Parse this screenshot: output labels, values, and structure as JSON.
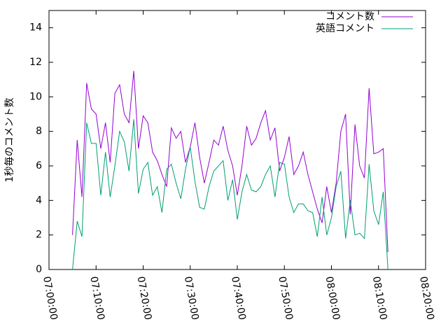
{
  "chart_data": {
    "type": "line",
    "ylabel": "1秒毎のコメント数",
    "x": [
      "07:05:00",
      "07:06:00",
      "07:07:00",
      "07:08:00",
      "07:09:00",
      "07:10:00",
      "07:11:00",
      "07:12:00",
      "07:13:00",
      "07:14:00",
      "07:15:00",
      "07:16:00",
      "07:17:00",
      "07:18:00",
      "07:19:00",
      "07:20:00",
      "07:21:00",
      "07:22:00",
      "07:23:00",
      "07:24:00",
      "07:25:00",
      "07:26:00",
      "07:27:00",
      "07:28:00",
      "07:29:00",
      "07:30:00",
      "07:31:00",
      "07:32:00",
      "07:33:00",
      "07:34:00",
      "07:35:00",
      "07:36:00",
      "07:37:00",
      "07:38:00",
      "07:39:00",
      "07:40:00",
      "07:41:00",
      "07:42:00",
      "07:43:00",
      "07:44:00",
      "07:45:00",
      "07:46:00",
      "07:47:00",
      "07:48:00",
      "07:49:00",
      "07:50:00",
      "07:51:00",
      "07:52:00",
      "07:53:00",
      "07:54:00",
      "07:55:00",
      "07:56:00",
      "07:57:00",
      "07:58:00",
      "07:59:00",
      "08:00:00",
      "08:01:00",
      "08:02:00",
      "08:03:00",
      "08:04:00",
      "08:05:00",
      "08:06:00",
      "08:07:00",
      "08:08:00",
      "08:09:00",
      "08:10:00",
      "08:11:00",
      "08:12:00"
    ],
    "series": [
      {
        "name": "コメント数",
        "color": "#9400d3",
        "values": [
          2.0,
          7.5,
          4.2,
          10.8,
          9.3,
          9.0,
          7.0,
          8.5,
          6.2,
          10.2,
          10.7,
          9.0,
          8.5,
          11.5,
          7.0,
          8.9,
          8.5,
          6.8,
          6.3,
          5.5,
          4.8,
          8.2,
          7.6,
          8.0,
          6.2,
          7.1,
          8.5,
          6.5,
          5.0,
          6.2,
          7.5,
          7.2,
          8.3,
          6.9,
          6.0,
          4.3,
          6.0,
          8.3,
          7.2,
          7.6,
          8.5,
          9.2,
          7.5,
          8.2,
          5.7,
          6.5,
          7.7,
          5.5,
          6.0,
          6.8,
          5.5,
          4.5,
          3.5,
          2.7,
          4.8,
          3.3,
          5.0,
          8.0,
          9.0,
          3.2,
          8.4,
          6.0,
          5.3,
          10.5,
          6.7,
          6.8,
          7.0,
          1.0
        ]
      },
      {
        "name": "英語コメント",
        "color": "#009e73",
        "values": [
          0,
          2.8,
          1.9,
          8.5,
          7.3,
          7.3,
          4.3,
          6.8,
          4.2,
          6.0,
          8.0,
          7.4,
          5.7,
          8.7,
          4.4,
          5.8,
          6.2,
          4.3,
          4.8,
          3.3,
          5.8,
          6.1,
          5.0,
          4.1,
          5.8,
          7.1,
          5.1,
          3.6,
          3.5,
          4.8,
          5.7,
          6.0,
          6.3,
          4.0,
          5.2,
          2.9,
          4.5,
          5.5,
          4.6,
          4.5,
          4.8,
          5.5,
          6.0,
          4.2,
          6.2,
          6.1,
          4.2,
          3.3,
          3.8,
          3.8,
          3.4,
          3.3,
          1.9,
          4.2,
          2.0,
          3.0,
          4.8,
          5.7,
          1.8,
          4.0,
          2.0,
          2.1,
          1.8,
          6.1,
          3.4,
          2.6,
          4.5,
          0
        ]
      }
    ],
    "xlim": [
      "07:00:00",
      "08:20:00"
    ],
    "xticks": [
      "07:00:00",
      "07:10:00",
      "07:20:00",
      "07:30:00",
      "07:40:00",
      "07:50:00",
      "08:00:00",
      "08:10:00",
      "08:20:00"
    ],
    "ylim": [
      0,
      15
    ],
    "yticks": [
      0,
      2,
      4,
      6,
      8,
      10,
      12,
      14
    ],
    "grid": false,
    "legend": "top-right"
  }
}
